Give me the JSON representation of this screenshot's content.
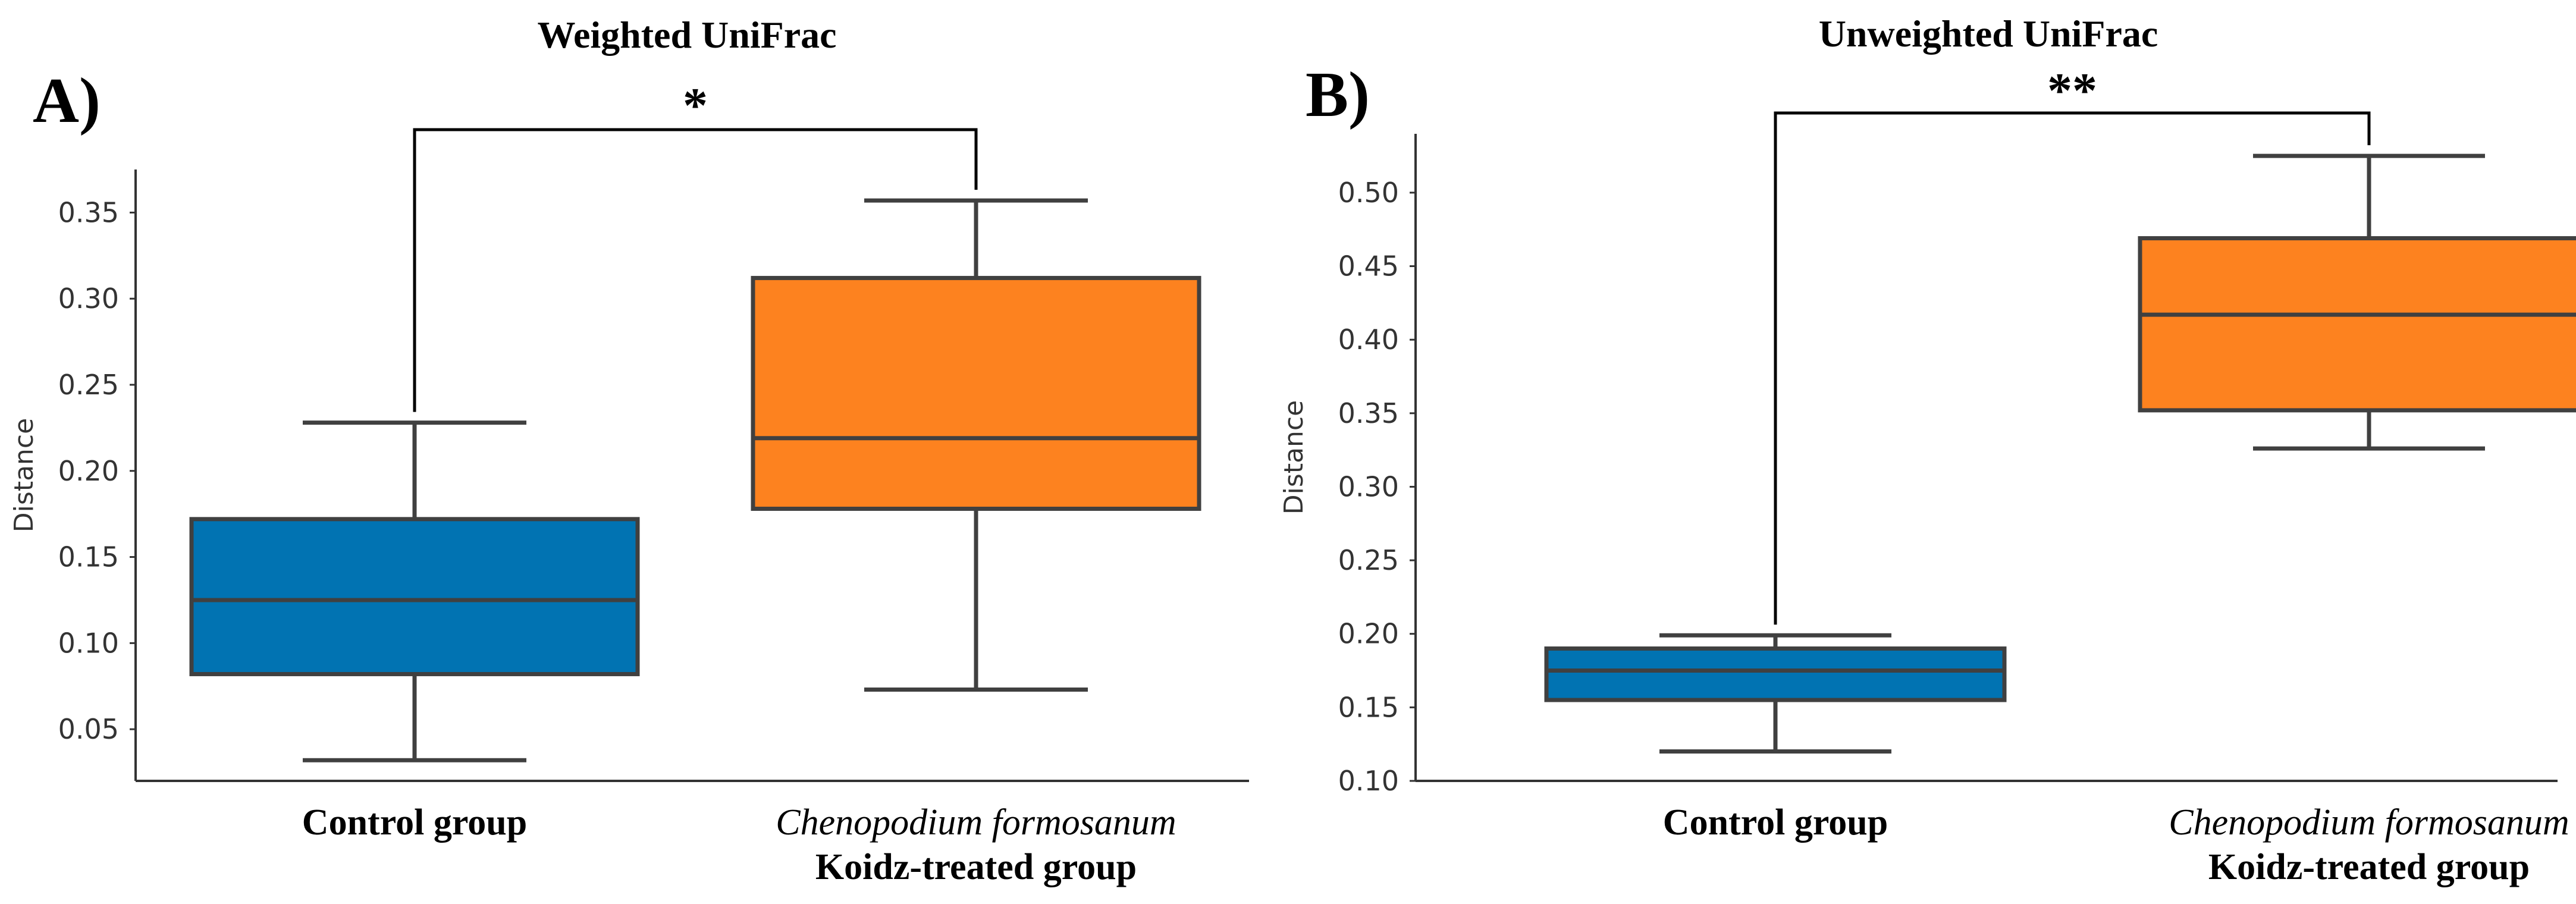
{
  "chart_data": [
    {
      "type": "box",
      "panel_label": "A)",
      "title": "Weighted UniFrac",
      "xlabel": "",
      "ylabel": "Distance",
      "ylim": [
        0.02,
        0.375
      ],
      "yticks": [
        0.05,
        0.1,
        0.15,
        0.2,
        0.25,
        0.3,
        0.35
      ],
      "ytick_labels": [
        "0.05",
        "0.10",
        "0.15",
        "0.20",
        "0.25",
        "0.30",
        "0.35"
      ],
      "categories": [
        {
          "line1": "Control group",
          "line1_italic": false,
          "line2": ""
        },
        {
          "line1": "Chenopodium formosanum",
          "line1_italic": true,
          "line2": "Koidz-treated group"
        }
      ],
      "boxes": [
        {
          "whislo": 0.032,
          "q1": 0.082,
          "med": 0.125,
          "q3": 0.172,
          "whishi": 0.228,
          "color": "#0173b2"
        },
        {
          "whislo": 0.073,
          "q1": 0.178,
          "med": 0.219,
          "q3": 0.312,
          "whishi": 0.357,
          "color": "#fd821f"
        }
      ],
      "significance": "*",
      "significance_pair": [
        0,
        1
      ]
    },
    {
      "type": "box",
      "panel_label": "B)",
      "title": "Unweighted UniFrac",
      "xlabel": "",
      "ylabel": "Distance",
      "ylim": [
        0.1,
        0.54
      ],
      "yticks": [
        0.1,
        0.15,
        0.2,
        0.25,
        0.3,
        0.35,
        0.4,
        0.45,
        0.5
      ],
      "ytick_labels": [
        "0.10",
        "0.15",
        "0.20",
        "0.25",
        "0.30",
        "0.35",
        "0.40",
        "0.45",
        "0.50"
      ],
      "categories": [
        {
          "line1": "Control group",
          "line1_italic": false,
          "line2": ""
        },
        {
          "line1": "Chenopodium formosanum",
          "line1_italic": true,
          "line2": "Koidz-treated group"
        }
      ],
      "boxes": [
        {
          "whislo": 0.12,
          "q1": 0.155,
          "med": 0.175,
          "q3": 0.19,
          "whishi": 0.199,
          "color": "#0173b2"
        },
        {
          "whislo": 0.326,
          "q1": 0.352,
          "med": 0.417,
          "q3": 0.469,
          "whishi": 0.525,
          "color": "#fd821f"
        }
      ],
      "significance": "**",
      "significance_pair": [
        0,
        1
      ]
    }
  ]
}
